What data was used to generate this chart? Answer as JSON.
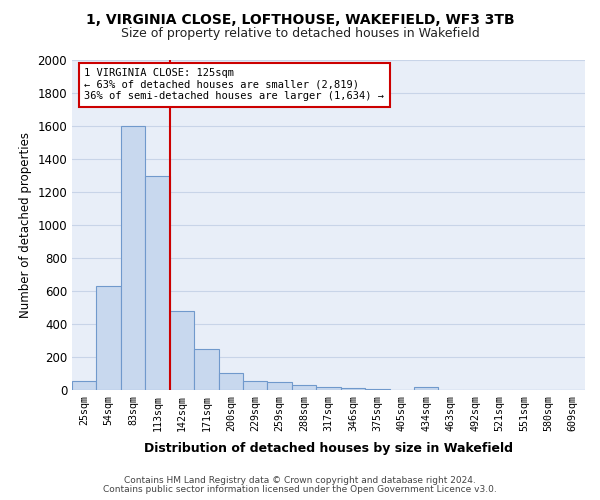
{
  "title_line1": "1, VIRGINIA CLOSE, LOFTHOUSE, WAKEFIELD, WF3 3TB",
  "title_line2": "Size of property relative to detached houses in Wakefield",
  "xlabel": "Distribution of detached houses by size in Wakefield",
  "ylabel": "Number of detached properties",
  "categories": [
    "25sqm",
    "54sqm",
    "83sqm",
    "113sqm",
    "142sqm",
    "171sqm",
    "200sqm",
    "229sqm",
    "259sqm",
    "288sqm",
    "317sqm",
    "346sqm",
    "375sqm",
    "405sqm",
    "434sqm",
    "463sqm",
    "492sqm",
    "521sqm",
    "551sqm",
    "580sqm",
    "609sqm"
  ],
  "values": [
    55,
    630,
    1600,
    1300,
    480,
    248,
    102,
    55,
    48,
    28,
    20,
    12,
    8,
    0,
    18,
    0,
    0,
    0,
    0,
    0,
    0
  ],
  "bar_color": "#c8d8ee",
  "bar_edge_color": "#7099cc",
  "vline_color": "#cc0000",
  "vline_x": 3.5,
  "annotation_text": "1 VIRGINIA CLOSE: 125sqm\n← 63% of detached houses are smaller (2,819)\n36% of semi-detached houses are larger (1,634) →",
  "annotation_box_color": "#ffffff",
  "annotation_border_color": "#cc0000",
  "ylim": [
    0,
    2000
  ],
  "yticks": [
    0,
    200,
    400,
    600,
    800,
    1000,
    1200,
    1400,
    1600,
    1800,
    2000
  ],
  "grid_color": "#c8d4e8",
  "background_color": "#e8eef8",
  "footer_line1": "Contains HM Land Registry data © Crown copyright and database right 2024.",
  "footer_line2": "Contains public sector information licensed under the Open Government Licence v3.0."
}
